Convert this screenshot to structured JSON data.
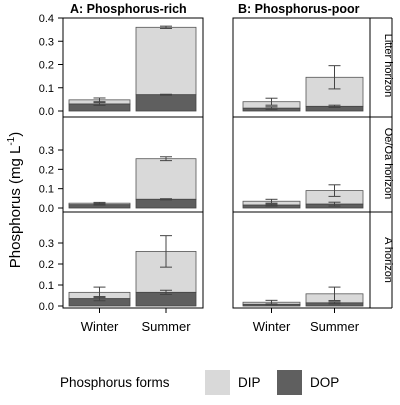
{
  "chart_data": {
    "type": "bar",
    "stacked": true,
    "panels": [
      {
        "id": "A",
        "title": "A: Phosphorus-rich"
      },
      {
        "id": "B",
        "title": "B: Phosphorus-poor"
      }
    ],
    "rows": [
      {
        "label": "Litter horizon",
        "ylim": [
          0,
          0.4
        ],
        "ticks": [
          "0.0",
          "0.1",
          "0.2",
          "0.3",
          "0.4"
        ]
      },
      {
        "label": "Oe/Oa horizon",
        "ylim": [
          0,
          0.3
        ],
        "ticks": [
          "0.0",
          "0.1",
          "0.2",
          "0.3"
        ]
      },
      {
        "label": "A horizon",
        "ylim": [
          0,
          0.3
        ],
        "ticks": [
          "0.0",
          "0.1",
          "0.2",
          "0.3"
        ]
      }
    ],
    "categories": [
      "Winter",
      "Summer"
    ],
    "series_names": [
      "DIP",
      "DOP"
    ],
    "series_colors": {
      "DIP": "#d9d9d9",
      "DOP": "#5f5f5f"
    },
    "ylabel_main": "Phosphorus (mg L",
    "ylabel_sup": "-1",
    "ylabel_tail": ")",
    "legend_title": "Phosphorus forms",
    "data": [
      {
        "panel": "A",
        "row": 0,
        "category": "Winter",
        "DOP": 0.03,
        "total": 0.048,
        "err_top": 0.056,
        "err_bot": 0.04,
        "dop_err_top": 0.036,
        "dop_err_bot": 0.024
      },
      {
        "panel": "A",
        "row": 0,
        "category": "Summer",
        "DOP": 0.07,
        "total": 0.36,
        "err_top": 0.365,
        "err_bot": 0.355,
        "dop_err_top": 0.072,
        "dop_err_bot": 0.068
      },
      {
        "panel": "A",
        "row": 1,
        "category": "Winter",
        "DOP": 0.017,
        "total": 0.025,
        "err_top": 0.029,
        "err_bot": 0.021,
        "dop_err_top": 0.019,
        "dop_err_bot": 0.015
      },
      {
        "panel": "A",
        "row": 1,
        "category": "Summer",
        "DOP": 0.045,
        "total": 0.255,
        "err_top": 0.265,
        "err_bot": 0.245,
        "dop_err_top": 0.048,
        "dop_err_bot": 0.042
      },
      {
        "panel": "A",
        "row": 2,
        "category": "Winter",
        "DOP": 0.035,
        "total": 0.065,
        "err_top": 0.09,
        "err_bot": 0.04,
        "dop_err_top": 0.045,
        "dop_err_bot": 0.025
      },
      {
        "panel": "A",
        "row": 2,
        "category": "Summer",
        "DOP": 0.065,
        "total": 0.26,
        "err_top": 0.335,
        "err_bot": 0.185,
        "dop_err_top": 0.075,
        "dop_err_bot": 0.055
      },
      {
        "panel": "B",
        "row": 0,
        "category": "Winter",
        "DOP": 0.012,
        "total": 0.04,
        "err_top": 0.055,
        "err_bot": 0.025,
        "dop_err_top": 0.018,
        "dop_err_bot": 0.006
      },
      {
        "panel": "B",
        "row": 0,
        "category": "Summer",
        "DOP": 0.02,
        "total": 0.145,
        "err_top": 0.195,
        "err_bot": 0.095,
        "dop_err_top": 0.025,
        "dop_err_bot": 0.015
      },
      {
        "panel": "B",
        "row": 1,
        "category": "Winter",
        "DOP": 0.015,
        "total": 0.035,
        "err_top": 0.045,
        "err_bot": 0.025,
        "dop_err_top": 0.02,
        "dop_err_bot": 0.01
      },
      {
        "panel": "B",
        "row": 1,
        "category": "Summer",
        "DOP": 0.02,
        "total": 0.09,
        "err_top": 0.12,
        "err_bot": 0.06,
        "dop_err_top": 0.03,
        "dop_err_bot": 0.01
      },
      {
        "panel": "B",
        "row": 2,
        "category": "Winter",
        "DOP": 0.008,
        "total": 0.018,
        "err_top": 0.027,
        "err_bot": 0.009,
        "dop_err_top": 0.01,
        "dop_err_bot": 0.006
      },
      {
        "panel": "B",
        "row": 2,
        "category": "Summer",
        "DOP": 0.015,
        "total": 0.058,
        "err_top": 0.09,
        "err_bot": 0.026,
        "dop_err_top": 0.02,
        "dop_err_bot": 0.01
      }
    ]
  }
}
